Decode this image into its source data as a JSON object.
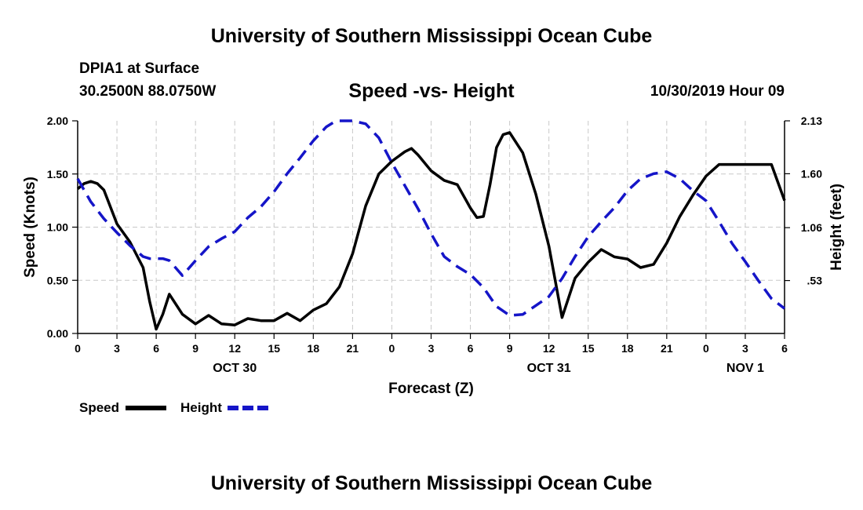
{
  "header": {
    "title": "University of Southern Mississippi Ocean Cube",
    "station": "DPIA1 at Surface",
    "coords": "30.2500N 88.0750W",
    "chart_title": "Speed -vs- Height",
    "datetime": "10/30/2019 Hour 09"
  },
  "footer": {
    "title": "University of Southern Mississippi Ocean Cube"
  },
  "colors": {
    "speed": "#000000",
    "height": "#1515c8",
    "grid": "#c8c8c8"
  },
  "chart_data": {
    "type": "line",
    "title": "Speed -vs- Height",
    "xlabel": "Forecast (Z)",
    "ylabel": "Speed (Knots)",
    "y2label": "Height (feet)",
    "x_hours_range": [
      0,
      54
    ],
    "ylim": [
      0,
      2.0
    ],
    "y2lim": [
      0,
      2.13
    ],
    "x_tick_hours": [
      0,
      3,
      6,
      9,
      12,
      15,
      18,
      21,
      24,
      27,
      30,
      33,
      36,
      39,
      42,
      45,
      48,
      51,
      54
    ],
    "x_tick_labels": [
      "0",
      "3",
      "6",
      "9",
      "12",
      "15",
      "18",
      "21",
      "0",
      "3",
      "6",
      "9",
      "12",
      "15",
      "18",
      "21",
      "0",
      "3",
      "6"
    ],
    "y_ticks": [
      0.0,
      0.5,
      1.0,
      1.5,
      2.0
    ],
    "y_tick_labels": [
      "0.00",
      "0.50",
      "1.00",
      "1.50",
      "2.00"
    ],
    "y2_ticks": [
      0.53,
      1.06,
      1.6,
      2.13
    ],
    "y2_tick_labels": [
      ".53",
      "1.06",
      "1.60",
      "2.13"
    ],
    "date_labels": [
      {
        "hour": 12,
        "label": "OCT 30"
      },
      {
        "hour": 36,
        "label": "OCT 31"
      },
      {
        "hour": 51,
        "label": "NOV 1"
      }
    ],
    "grid": true,
    "legend": [
      {
        "name": "Speed",
        "style": "solid"
      },
      {
        "name": "Height",
        "style": "dashed"
      }
    ],
    "series": [
      {
        "name": "Speed",
        "axis": "left",
        "x": [
          0,
          0.5,
          1,
          1.5,
          2,
          3,
          4,
          5,
          5.5,
          6,
          6.5,
          7,
          8,
          9,
          10,
          11,
          12,
          13,
          14,
          15,
          16,
          17,
          18,
          19,
          20,
          21,
          22,
          23,
          24,
          25,
          25.5,
          26,
          27,
          28,
          29,
          30,
          30.5,
          31,
          31.5,
          32,
          32.5,
          33,
          34,
          35,
          36,
          37,
          38,
          39,
          40,
          41,
          42,
          43,
          44,
          45,
          46,
          47,
          48,
          49,
          50,
          51,
          52,
          53,
          54
        ],
        "values": [
          1.36,
          1.41,
          1.43,
          1.41,
          1.35,
          1.03,
          0.86,
          0.62,
          0.3,
          0.04,
          0.18,
          0.37,
          0.18,
          0.09,
          0.17,
          0.09,
          0.08,
          0.14,
          0.12,
          0.12,
          0.19,
          0.12,
          0.22,
          0.28,
          0.44,
          0.75,
          1.2,
          1.5,
          1.62,
          1.71,
          1.74,
          1.68,
          1.53,
          1.44,
          1.4,
          1.18,
          1.09,
          1.1,
          1.4,
          1.75,
          1.87,
          1.89,
          1.7,
          1.31,
          0.82,
          0.15,
          0.52,
          0.67,
          0.79,
          0.72,
          0.7,
          0.62,
          0.65,
          0.85,
          1.1,
          1.3,
          1.48,
          1.59,
          1.59,
          1.59,
          1.59,
          1.59,
          1.25
        ]
      },
      {
        "name": "Height",
        "axis": "right",
        "x": [
          0,
          1,
          2,
          3,
          4,
          5,
          5.5,
          6,
          6.5,
          7,
          8,
          9,
          10,
          11,
          12,
          13,
          14,
          15,
          16,
          17,
          18,
          19,
          19.5,
          20,
          21,
          22,
          23,
          24,
          25,
          26,
          27,
          28,
          29,
          30,
          31,
          32,
          33,
          34,
          35,
          36,
          37,
          38,
          39,
          40,
          41,
          42,
          43,
          44,
          45,
          46,
          47,
          48,
          49,
          50,
          51,
          52,
          53,
          54
        ],
        "values": [
          1.55,
          1.32,
          1.15,
          1.01,
          0.88,
          0.77,
          0.75,
          0.75,
          0.75,
          0.73,
          0.58,
          0.73,
          0.87,
          0.95,
          1.02,
          1.16,
          1.27,
          1.42,
          1.6,
          1.76,
          1.93,
          2.07,
          2.11,
          2.13,
          2.13,
          2.1,
          1.96,
          1.71,
          1.48,
          1.25,
          1.0,
          0.77,
          0.67,
          0.59,
          0.46,
          0.27,
          0.18,
          0.19,
          0.28,
          0.37,
          0.55,
          0.77,
          0.97,
          1.12,
          1.26,
          1.43,
          1.55,
          1.6,
          1.62,
          1.55,
          1.43,
          1.33,
          1.12,
          0.9,
          0.72,
          0.53,
          0.35,
          0.25
        ]
      }
    ]
  }
}
